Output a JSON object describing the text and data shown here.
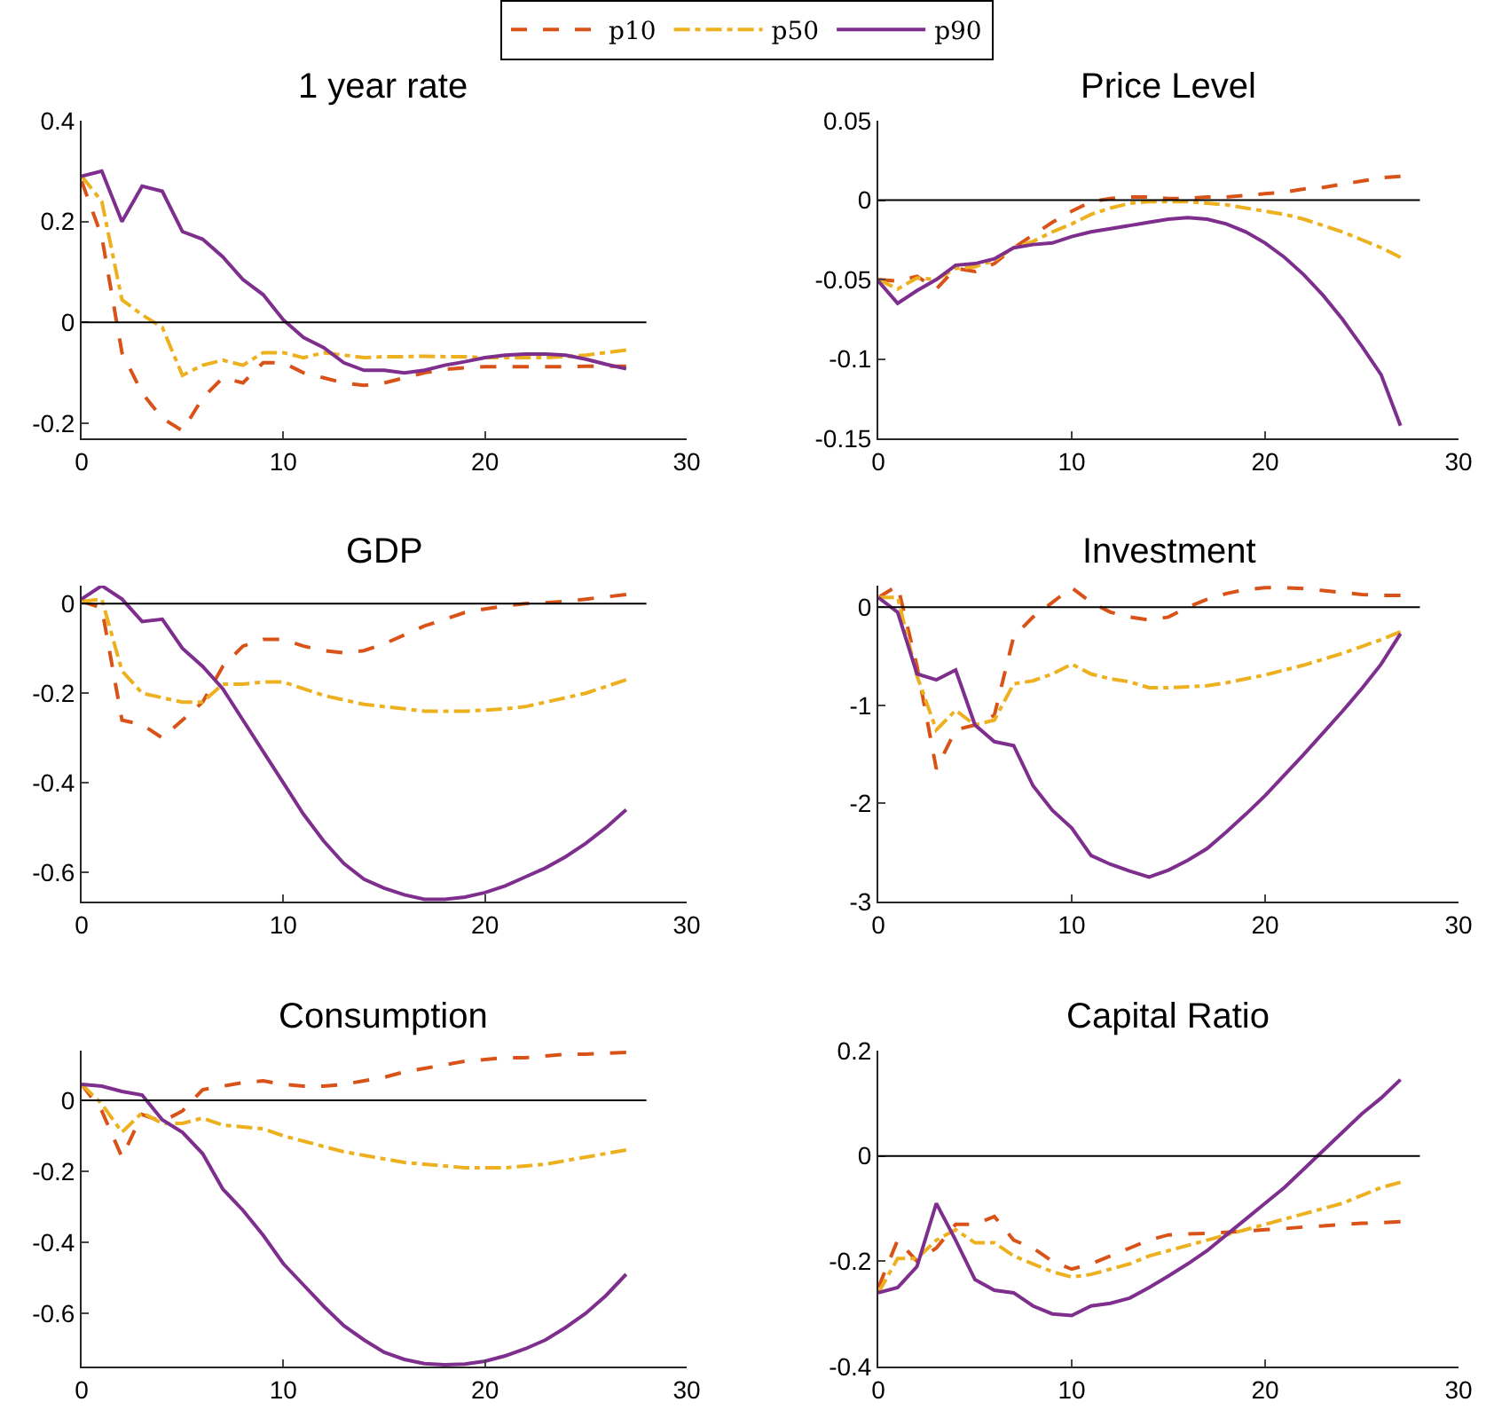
{
  "chart_data": [
    {
      "type": "line",
      "title": "1 year rate",
      "legend": "top",
      "x": [
        0,
        1,
        2,
        3,
        4,
        5,
        6,
        7,
        8,
        9,
        10,
        11,
        12,
        13,
        14,
        15,
        16,
        17,
        18,
        19,
        20,
        21,
        22,
        23,
        24,
        25,
        26,
        27
      ],
      "xlim": [
        0,
        30
      ],
      "xticks": [
        0,
        10,
        20,
        30
      ],
      "ylim": [
        -0.23,
        0.4
      ],
      "yticks": [
        -0.2,
        0,
        0.2,
        0.4
      ],
      "ref_lines": [
        {
          "axis": "y",
          "value": 0,
          "color": "#000000"
        }
      ],
      "series": [
        {
          "name": "p10",
          "color": "#d95319",
          "line_style": "dashed",
          "values": [
            0.28,
            0.17,
            -0.06,
            -0.14,
            -0.19,
            -0.215,
            -0.15,
            -0.11,
            -0.12,
            -0.08,
            -0.08,
            -0.1,
            -0.11,
            -0.12,
            -0.125,
            -0.12,
            -0.11,
            -0.1,
            -0.093,
            -0.09,
            -0.088,
            -0.088,
            -0.088,
            -0.088,
            -0.088,
            -0.087,
            -0.087,
            -0.087
          ]
        },
        {
          "name": "p50",
          "color": "#edb120",
          "line_style": "dashdot",
          "values": [
            0.29,
            0.24,
            0.045,
            0.015,
            -0.01,
            -0.105,
            -0.085,
            -0.075,
            -0.085,
            -0.06,
            -0.06,
            -0.07,
            -0.06,
            -0.065,
            -0.07,
            -0.068,
            -0.068,
            -0.067,
            -0.068,
            -0.068,
            -0.07,
            -0.07,
            -0.07,
            -0.07,
            -0.068,
            -0.065,
            -0.06,
            -0.055
          ]
        },
        {
          "name": "p90",
          "color": "#7e2f8e",
          "line_style": "solid",
          "values": [
            0.29,
            0.3,
            0.2,
            0.27,
            0.26,
            0.18,
            0.165,
            0.13,
            0.085,
            0.055,
            0.005,
            -0.03,
            -0.05,
            -0.08,
            -0.095,
            -0.095,
            -0.1,
            -0.095,
            -0.085,
            -0.078,
            -0.07,
            -0.065,
            -0.063,
            -0.063,
            -0.065,
            -0.073,
            -0.083,
            -0.092
          ]
        }
      ]
    },
    {
      "type": "line",
      "title": "Price Level",
      "legend": "top",
      "x": [
        0,
        1,
        2,
        3,
        4,
        5,
        6,
        7,
        8,
        9,
        10,
        11,
        12,
        13,
        14,
        15,
        16,
        17,
        18,
        19,
        20,
        21,
        22,
        23,
        24,
        25,
        26,
        27
      ],
      "xlim": [
        0,
        30
      ],
      "xticks": [
        0,
        10,
        20,
        30
      ],
      "ylim": [
        -0.15,
        0.05
      ],
      "yticks": [
        -0.15,
        -0.1,
        -0.05,
        0,
        0.05
      ],
      "ref_lines": [
        {
          "axis": "y",
          "value": 0,
          "color": "#000000"
        }
      ],
      "series": [
        {
          "name": "p10",
          "color": "#d95319",
          "line_style": "dashed",
          "values": [
            -0.05,
            -0.051,
            -0.048,
            -0.056,
            -0.043,
            -0.045,
            -0.04,
            -0.03,
            -0.022,
            -0.014,
            -0.007,
            -0.001,
            0.001,
            0.002,
            0.002,
            0.001,
            0.001,
            0.002,
            0.002,
            0.003,
            0.004,
            0.005,
            0.007,
            0.008,
            0.01,
            0.012,
            0.014,
            0.015
          ]
        },
        {
          "name": "p50",
          "color": "#edb120",
          "line_style": "dashdot",
          "values": [
            -0.05,
            -0.056,
            -0.049,
            -0.05,
            -0.043,
            -0.042,
            -0.038,
            -0.03,
            -0.026,
            -0.02,
            -0.015,
            -0.009,
            -0.005,
            -0.002,
            -0.001,
            -0.001,
            -0.001,
            -0.002,
            -0.003,
            -0.005,
            -0.007,
            -0.009,
            -0.012,
            -0.016,
            -0.02,
            -0.025,
            -0.03,
            -0.036
          ]
        },
        {
          "name": "p90",
          "color": "#7e2f8e",
          "line_style": "solid",
          "values": [
            -0.051,
            -0.065,
            -0.057,
            -0.05,
            -0.041,
            -0.04,
            -0.037,
            -0.03,
            -0.028,
            -0.027,
            -0.023,
            -0.02,
            -0.018,
            -0.016,
            -0.014,
            -0.012,
            -0.011,
            -0.012,
            -0.015,
            -0.02,
            -0.027,
            -0.036,
            -0.047,
            -0.06,
            -0.075,
            -0.092,
            -0.11,
            -0.142
          ]
        }
      ]
    },
    {
      "type": "line",
      "title": "GDP",
      "legend": "top",
      "x": [
        0,
        1,
        2,
        3,
        4,
        5,
        6,
        7,
        8,
        9,
        10,
        11,
        12,
        13,
        14,
        15,
        16,
        17,
        18,
        19,
        20,
        21,
        22,
        23,
        24,
        25,
        26,
        27
      ],
      "xlim": [
        0,
        30
      ],
      "xticks": [
        0,
        10,
        20,
        30
      ],
      "ylim": [
        -0.665,
        0.04
      ],
      "yticks": [
        -0.6,
        -0.4,
        -0.2,
        0
      ],
      "ref_lines": [
        {
          "axis": "y",
          "value": 0,
          "color": "#000000"
        }
      ],
      "series": [
        {
          "name": "p10",
          "color": "#d95319",
          "line_style": "dashed",
          "values": [
            0.005,
            -0.01,
            -0.26,
            -0.27,
            -0.3,
            -0.26,
            -0.22,
            -0.14,
            -0.095,
            -0.08,
            -0.08,
            -0.095,
            -0.105,
            -0.11,
            -0.105,
            -0.09,
            -0.07,
            -0.05,
            -0.035,
            -0.02,
            -0.012,
            -0.005,
            0,
            0.002,
            0.005,
            0.01,
            0.015,
            0.02
          ]
        },
        {
          "name": "p50",
          "color": "#edb120",
          "line_style": "dashdot",
          "values": [
            0.005,
            0.01,
            -0.15,
            -0.2,
            -0.21,
            -0.22,
            -0.22,
            -0.18,
            -0.18,
            -0.175,
            -0.175,
            -0.19,
            -0.205,
            -0.215,
            -0.225,
            -0.23,
            -0.235,
            -0.24,
            -0.24,
            -0.24,
            -0.238,
            -0.235,
            -0.23,
            -0.22,
            -0.21,
            -0.2,
            -0.185,
            -0.17
          ]
        },
        {
          "name": "p90",
          "color": "#7e2f8e",
          "line_style": "solid",
          "values": [
            0.01,
            0.04,
            0.01,
            -0.04,
            -0.035,
            -0.1,
            -0.14,
            -0.19,
            -0.26,
            -0.33,
            -0.4,
            -0.47,
            -0.53,
            -0.58,
            -0.615,
            -0.635,
            -0.65,
            -0.66,
            -0.66,
            -0.655,
            -0.645,
            -0.63,
            -0.61,
            -0.59,
            -0.565,
            -0.535,
            -0.5,
            -0.46
          ]
        }
      ]
    },
    {
      "type": "line",
      "title": "Investment",
      "legend": "top",
      "x": [
        0,
        1,
        2,
        3,
        4,
        5,
        6,
        7,
        8,
        9,
        10,
        11,
        12,
        13,
        14,
        15,
        16,
        17,
        18,
        19,
        20,
        21,
        22,
        23,
        24,
        25,
        26,
        27
      ],
      "xlim": [
        0,
        30
      ],
      "xticks": [
        0,
        10,
        20,
        30
      ],
      "ylim": [
        -3,
        0.22
      ],
      "yticks": [
        -3,
        -2,
        -1,
        0
      ],
      "ref_lines": [
        {
          "axis": "y",
          "value": 0,
          "color": "#000000"
        }
      ],
      "series": [
        {
          "name": "p10",
          "color": "#d95319",
          "line_style": "dashed",
          "values": [
            0.1,
            0.22,
            -0.6,
            -1.65,
            -1.25,
            -1.2,
            -1.1,
            -0.3,
            -0.1,
            0.05,
            0.2,
            0.05,
            -0.05,
            -0.1,
            -0.13,
            -0.1,
            0,
            0.08,
            0.14,
            0.18,
            0.2,
            0.2,
            0.19,
            0.17,
            0.15,
            0.13,
            0.12,
            0.12
          ]
        },
        {
          "name": "p50",
          "color": "#edb120",
          "line_style": "dashdot",
          "values": [
            0.1,
            0.1,
            -0.7,
            -1.25,
            -1.05,
            -1.2,
            -1.15,
            -0.78,
            -0.75,
            -0.68,
            -0.58,
            -0.68,
            -0.73,
            -0.76,
            -0.82,
            -0.82,
            -0.81,
            -0.8,
            -0.77,
            -0.73,
            -0.69,
            -0.64,
            -0.59,
            -0.53,
            -0.47,
            -0.4,
            -0.33,
            -0.25
          ]
        },
        {
          "name": "p90",
          "color": "#7e2f8e",
          "line_style": "solid",
          "values": [
            0.1,
            -0.05,
            -0.68,
            -0.74,
            -0.64,
            -1.2,
            -1.37,
            -1.41,
            -1.82,
            -2.07,
            -2.25,
            -2.53,
            -2.62,
            -2.69,
            -2.75,
            -2.68,
            -2.58,
            -2.46,
            -2.29,
            -2.11,
            -1.92,
            -1.71,
            -1.5,
            -1.28,
            -1.06,
            -0.83,
            -0.58,
            -0.27
          ]
        }
      ]
    },
    {
      "type": "line",
      "title": "Consumption",
      "legend": "top",
      "x": [
        0,
        1,
        2,
        3,
        4,
        5,
        6,
        7,
        8,
        9,
        10,
        11,
        12,
        13,
        14,
        15,
        16,
        17,
        18,
        19,
        20,
        21,
        22,
        23,
        24,
        25,
        26,
        27
      ],
      "xlim": [
        0,
        30
      ],
      "xticks": [
        0,
        10,
        20,
        30
      ],
      "ylim": [
        -0.75,
        0.14
      ],
      "yticks": [
        -0.6,
        -0.4,
        -0.2,
        0
      ],
      "ref_lines": [
        {
          "axis": "y",
          "value": 0,
          "color": "#000000"
        }
      ],
      "series": [
        {
          "name": "p10",
          "color": "#d95319",
          "line_style": "dashed",
          "values": [
            0.045,
            -0.03,
            -0.16,
            -0.04,
            -0.06,
            -0.03,
            0.03,
            0.04,
            0.05,
            0.055,
            0.045,
            0.04,
            0.04,
            0.045,
            0.055,
            0.065,
            0.08,
            0.09,
            0.1,
            0.11,
            0.115,
            0.12,
            0.12,
            0.125,
            0.13,
            0.13,
            0.133,
            0.135
          ]
        },
        {
          "name": "p50",
          "color": "#edb120",
          "line_style": "dashdot",
          "values": [
            0.045,
            -0.01,
            -0.09,
            -0.035,
            -0.065,
            -0.065,
            -0.05,
            -0.07,
            -0.075,
            -0.08,
            -0.1,
            -0.115,
            -0.13,
            -0.145,
            -0.155,
            -0.165,
            -0.175,
            -0.18,
            -0.185,
            -0.19,
            -0.19,
            -0.19,
            -0.185,
            -0.18,
            -0.17,
            -0.16,
            -0.15,
            -0.14
          ]
        },
        {
          "name": "p90",
          "color": "#7e2f8e",
          "line_style": "solid",
          "values": [
            0.045,
            0.04,
            0.025,
            0.015,
            -0.055,
            -0.09,
            -0.15,
            -0.25,
            -0.31,
            -0.38,
            -0.46,
            -0.52,
            -0.58,
            -0.635,
            -0.675,
            -0.71,
            -0.73,
            -0.742,
            -0.745,
            -0.743,
            -0.735,
            -0.72,
            -0.7,
            -0.675,
            -0.64,
            -0.6,
            -0.55,
            -0.49
          ]
        }
      ]
    },
    {
      "type": "line",
      "title": "Capital Ratio",
      "legend": "top",
      "x": [
        0,
        1,
        2,
        3,
        4,
        5,
        6,
        7,
        8,
        9,
        10,
        11,
        12,
        13,
        14,
        15,
        16,
        17,
        18,
        19,
        20,
        21,
        22,
        23,
        24,
        25,
        26,
        27
      ],
      "xlim": [
        0,
        30
      ],
      "xticks": [
        0,
        10,
        20,
        30
      ],
      "ylim": [
        -0.4,
        0.2
      ],
      "yticks": [
        -0.4,
        -0.2,
        0,
        0.2
      ],
      "ref_lines": [
        {
          "axis": "y",
          "value": 0,
          "color": "#000000"
        }
      ],
      "series": [
        {
          "name": "p10",
          "color": "#d95319",
          "line_style": "dashed",
          "values": [
            -0.25,
            -0.16,
            -0.2,
            -0.175,
            -0.13,
            -0.13,
            -0.115,
            -0.16,
            -0.175,
            -0.2,
            -0.215,
            -0.205,
            -0.19,
            -0.175,
            -0.16,
            -0.15,
            -0.148,
            -0.147,
            -0.145,
            -0.143,
            -0.14,
            -0.138,
            -0.135,
            -0.133,
            -0.13,
            -0.128,
            -0.127,
            -0.125
          ]
        },
        {
          "name": "p50",
          "color": "#edb120",
          "line_style": "dashdot",
          "values": [
            -0.26,
            -0.195,
            -0.195,
            -0.16,
            -0.14,
            -0.165,
            -0.165,
            -0.19,
            -0.205,
            -0.22,
            -0.23,
            -0.225,
            -0.215,
            -0.205,
            -0.19,
            -0.18,
            -0.17,
            -0.16,
            -0.15,
            -0.14,
            -0.13,
            -0.12,
            -0.11,
            -0.1,
            -0.09,
            -0.075,
            -0.06,
            -0.05
          ]
        },
        {
          "name": "p90",
          "color": "#7e2f8e",
          "line_style": "solid",
          "values": [
            -0.26,
            -0.25,
            -0.21,
            -0.09,
            -0.16,
            -0.235,
            -0.255,
            -0.26,
            -0.285,
            -0.3,
            -0.303,
            -0.285,
            -0.28,
            -0.27,
            -0.25,
            -0.228,
            -0.205,
            -0.18,
            -0.15,
            -0.12,
            -0.09,
            -0.06,
            -0.025,
            0.01,
            0.045,
            0.08,
            0.11,
            0.145
          ]
        }
      ]
    }
  ]
}
